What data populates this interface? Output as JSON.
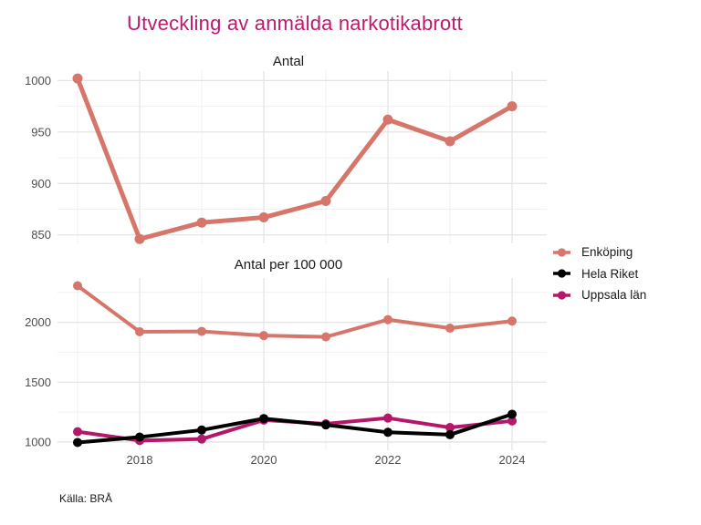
{
  "title": "Utveckling av anmälda narkotikabrott",
  "caption": "Källa: BRÅ",
  "colors": {
    "title": "#bd1a6e",
    "axis_text": "#4d4d4d",
    "grid_major": "#e4e4e4",
    "grid_minor": "#f1f1f1",
    "enkoping": "#d6766b",
    "hela_riket": "#000000",
    "uppsala_lan": "#b5186a"
  },
  "legend": {
    "position": "right",
    "items": [
      {
        "label": "Enköping",
        "color_key": "enkoping"
      },
      {
        "label": "Hela Riket",
        "color_key": "hela_riket"
      },
      {
        "label": "Uppsala län",
        "color_key": "uppsala_lan"
      }
    ]
  },
  "chart_data": [
    {
      "type": "line",
      "title": "Antal",
      "x": [
        2017,
        2018,
        2019,
        2020,
        2021,
        2022,
        2023,
        2024
      ],
      "series": [
        {
          "name": "Enköping",
          "color_key": "enkoping",
          "values": [
            1002,
            846,
            862,
            867,
            883,
            962,
            941,
            975
          ]
        }
      ],
      "xlabel": "",
      "ylabel": "",
      "ylim": [
        841.8,
        1009.2
      ],
      "yticks": [
        850,
        900,
        950,
        1000
      ],
      "yticks_minor": [
        875,
        925,
        975
      ],
      "xticks": [
        2018,
        2020,
        2022,
        2024
      ],
      "xticks_minor": [
        2017,
        2019,
        2021,
        2023
      ],
      "show_x_tick_labels": false,
      "grid": true
    },
    {
      "type": "line",
      "title": "Antal per 100 000",
      "x": [
        2017,
        2018,
        2019,
        2020,
        2021,
        2022,
        2023,
        2024
      ],
      "series": [
        {
          "name": "Enköping",
          "color_key": "enkoping",
          "values": [
            2305,
            1921,
            1924,
            1889,
            1878,
            2022,
            1951,
            2010
          ]
        },
        {
          "name": "Hela Riket",
          "color_key": "hela_riket",
          "values": [
            996,
            1041,
            1100,
            1196,
            1143,
            1081,
            1061,
            1232
          ]
        },
        {
          "name": "Uppsala län",
          "color_key": "uppsala_lan",
          "values": [
            1086,
            1012,
            1025,
            1183,
            1152,
            1200,
            1121,
            1176
          ]
        }
      ],
      "xlabel": "",
      "ylabel": "",
      "ylim": [
        931,
        2370
      ],
      "yticks": [
        1000,
        1500,
        2000
      ],
      "yticks_minor": [
        1250,
        1750,
        2250
      ],
      "xticks": [
        2018,
        2020,
        2022,
        2024
      ],
      "xticks_minor": [
        2017,
        2019,
        2021,
        2023
      ],
      "show_x_tick_labels": true,
      "grid": true
    }
  ]
}
